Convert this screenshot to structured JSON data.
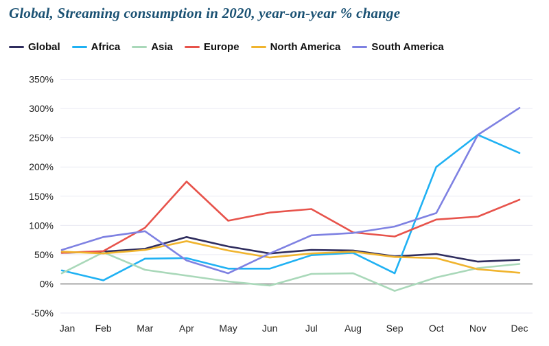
{
  "title": "Global, Streaming consumption in 2020, year-on-year % change",
  "colors": {
    "title_text": "#1a5173",
    "gridline": "#e9eaf3",
    "zero_line": "#a9a9a9",
    "axis_text": "#1c1c1c"
  },
  "chart_data": {
    "type": "line",
    "title": "Global, Streaming consumption in 2020, year-on-year % change",
    "xlabel": "",
    "ylabel": "year-on-year % change",
    "categories": [
      "Jan",
      "Feb",
      "Mar",
      "Apr",
      "May",
      "Jun",
      "Jul",
      "Aug",
      "Sep",
      "Oct",
      "Nov",
      "Dec"
    ],
    "series": [
      {
        "name": "Global",
        "color": "#2f2d5e",
        "values": [
          53,
          55,
          60,
          80,
          64,
          52,
          58,
          57,
          47,
          51,
          38,
          41
        ]
      },
      {
        "name": "Africa",
        "color": "#1fb1f3",
        "values": [
          23,
          6,
          43,
          44,
          26,
          26,
          49,
          53,
          18,
          200,
          255,
          224
        ]
      },
      {
        "name": "Asia",
        "color": "#a9d8b9",
        "values": [
          18,
          54,
          24,
          14,
          4,
          -3,
          17,
          18,
          -12,
          11,
          27,
          34
        ]
      },
      {
        "name": "Europe",
        "color": "#e7534b",
        "values": [
          53,
          56,
          96,
          175,
          108,
          122,
          128,
          88,
          81,
          110,
          115,
          144
        ]
      },
      {
        "name": "North America",
        "color": "#f0b42e",
        "values": [
          55,
          52,
          58,
          73,
          57,
          45,
          52,
          55,
          46,
          44,
          25,
          19
        ]
      },
      {
        "name": "South America",
        "color": "#7e81e2",
        "values": [
          58,
          80,
          90,
          40,
          18,
          52,
          83,
          87,
          98,
          121,
          255,
          301
        ]
      }
    ],
    "ylim": [
      -50,
      350
    ],
    "y_ticks": [
      350,
      300,
      250,
      200,
      150,
      100,
      50,
      0,
      -50
    ],
    "y_tick_suffix": "%",
    "grid": true,
    "zero_line_emphasized": true,
    "legend_position": "top-left"
  }
}
